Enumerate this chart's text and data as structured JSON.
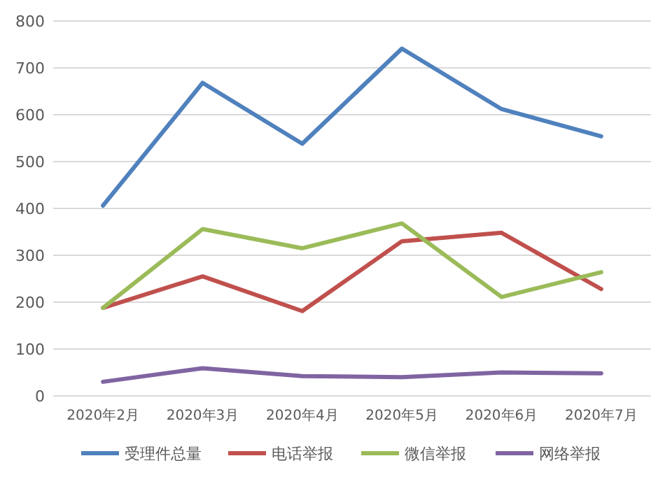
{
  "chart_data": {
    "type": "line",
    "categories": [
      "2020年2月",
      "2020年3月",
      "2020年4月",
      "2020年5月",
      "2020年6月",
      "2020年7月"
    ],
    "series": [
      {
        "name": "受理件总量",
        "color": "#4f81bd",
        "values": [
          406,
          668,
          538,
          741,
          612,
          554
        ]
      },
      {
        "name": "电话举报",
        "color": "#c0504d",
        "values": [
          188,
          255,
          181,
          330,
          348,
          228
        ]
      },
      {
        "name": "微信举报",
        "color": "#9bbb59",
        "values": [
          188,
          356,
          315,
          368,
          211,
          264
        ]
      },
      {
        "name": "网络举报",
        "color": "#8064a2",
        "values": [
          30,
          59,
          42,
          40,
          50,
          48
        ]
      }
    ],
    "ylim": [
      0,
      800
    ],
    "yticks": [
      0,
      100,
      200,
      300,
      400,
      500,
      600,
      700,
      800
    ],
    "grid": "y",
    "legend": "bottom",
    "marker": "none",
    "line_style": "solid"
  }
}
